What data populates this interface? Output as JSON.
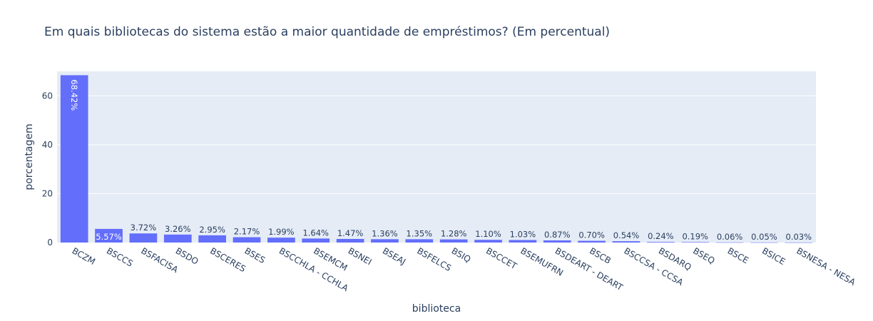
{
  "chart_data": {
    "type": "bar",
    "title": "Em quais bibliotecas do sistema estão a maior quantidade de empréstimos? (Em percentual)",
    "xlabel": "biblioteca",
    "ylabel": "porcentagem",
    "ylim": [
      0,
      70
    ],
    "yticks": [
      0,
      20,
      40,
      60
    ],
    "grid": true,
    "bar_color": "#636efa",
    "plot_bg": "#e5ecf6",
    "categories": [
      "BCZM",
      "BSCCS",
      "BSFACISA",
      "BSDO",
      "BSCERES",
      "BSES",
      "BSCCHLA - CCHLA",
      "BSEMCM",
      "BSNEI",
      "BSEAJ",
      "BSFELCS",
      "BSIQ",
      "BSCCET",
      "BSEMUFRN",
      "BSDEART - DEART",
      "BSCB",
      "BSCCSA - CCSA",
      "BSDARQ",
      "BSEQ",
      "BSCE",
      "BSICE",
      "BSNESA - NESA"
    ],
    "values": [
      68.42,
      5.57,
      3.72,
      3.26,
      2.95,
      2.17,
      1.99,
      1.64,
      1.47,
      1.36,
      1.35,
      1.28,
      1.1,
      1.03,
      0.87,
      0.7,
      0.54,
      0.24,
      0.19,
      0.06,
      0.05,
      0.03
    ],
    "labels": [
      "68.42%",
      "5.57%",
      "3.72%",
      "3.26%",
      "2.95%",
      "2.17%",
      "1.99%",
      "1.64%",
      "1.47%",
      "1.36%",
      "1.35%",
      "1.28%",
      "1.10%",
      "1.03%",
      "0.87%",
      "0.70%",
      "0.54%",
      "0.24%",
      "0.19%",
      "0.06%",
      "0.05%",
      "0.03%"
    ]
  }
}
